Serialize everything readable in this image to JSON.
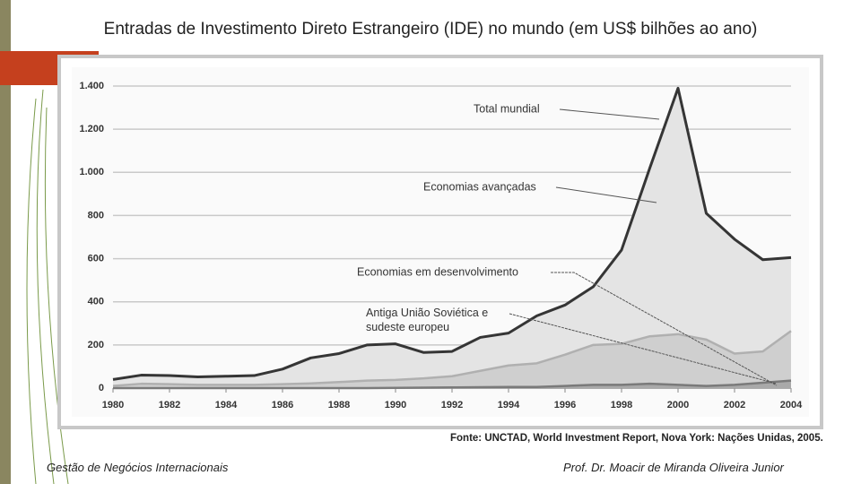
{
  "title": "Entradas de Investimento Direto Estrangeiro (IDE) no mundo (em US$ bilhões ao ano)",
  "source": "Fonte: UNCTAD, World Investment Report, Nova York: Nações Unidas, 2005.",
  "footer_left": "Gestão de Negócios Internacionais",
  "footer_right": "Prof. Dr. Moacir de Miranda Oliveira Junior",
  "chart_data": {
    "type": "stacked_area",
    "x": [
      1980,
      1981,
      1982,
      1983,
      1984,
      1985,
      1986,
      1987,
      1988,
      1989,
      1990,
      1991,
      1992,
      1993,
      1994,
      1995,
      1996,
      1997,
      1998,
      1999,
      2000,
      2001,
      2002,
      2003,
      2004
    ],
    "series": [
      {
        "name": "Antiga União Soviética e sudeste europeu",
        "color": "#a9a9a9",
        "line_color": "#7a7a7a",
        "values": [
          0,
          0,
          0,
          0,
          0,
          0,
          0,
          0,
          0,
          0,
          1,
          2,
          3,
          4,
          5,
          5,
          10,
          15,
          15,
          20,
          15,
          10,
          15,
          25,
          35
        ]
      },
      {
        "name": "Economias em desenvolvimento",
        "color": "#cfcfcf",
        "line_color": "#b0b0b0",
        "values": [
          10,
          20,
          18,
          15,
          15,
          15,
          18,
          22,
          28,
          35,
          37,
          43,
          52,
          76,
          100,
          110,
          145,
          185,
          190,
          220,
          235,
          215,
          145,
          145,
          230
        ]
      },
      {
        "name": "Economias avançadas",
        "color": "#e4e4e4",
        "line_color": "#353535",
        "values": [
          30,
          40,
          40,
          37,
          40,
          43,
          70,
          118,
          132,
          165,
          167,
          120,
          115,
          155,
          150,
          220,
          230,
          270,
          435,
          780,
          1140,
          585,
          530,
          425,
          340
        ]
      }
    ],
    "annotations": [
      "Total mundial"
    ],
    "xlim": [
      1980,
      2004
    ],
    "xticks": [
      1980,
      1982,
      1984,
      1986,
      1988,
      1990,
      1992,
      1994,
      1996,
      1998,
      2000,
      2002,
      2004
    ],
    "ylim": [
      0,
      1400
    ],
    "yticks": [
      0,
      200,
      400,
      600,
      800,
      {
        "value": 1000,
        "label": "1.000"
      },
      {
        "value": 1200,
        "label": "1.200"
      },
      {
        "value": 1400,
        "label": "1.400"
      }
    ],
    "grid": true
  }
}
